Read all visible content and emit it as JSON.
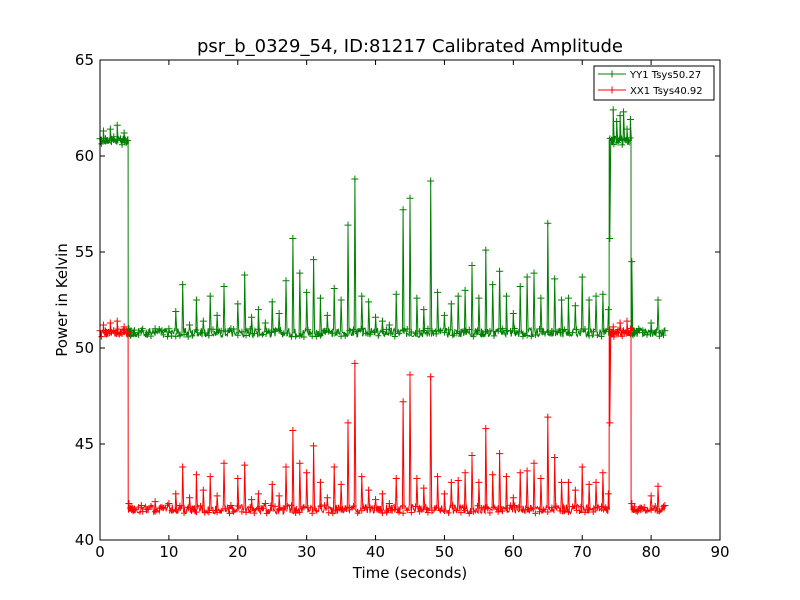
{
  "chart_data": {
    "type": "line",
    "title": "psr_b_0329_54, ID:81217 Calibrated Amplitude",
    "xlabel": "Time (seconds)",
    "ylabel": "Power in Kelvin",
    "xlim": [
      0,
      90
    ],
    "ylim": [
      40,
      65
    ],
    "xticks": [
      "0",
      "10",
      "20",
      "30",
      "40",
      "50",
      "60",
      "70",
      "80",
      "90"
    ],
    "yticks": [
      "40",
      "45",
      "50",
      "55",
      "60",
      "65"
    ],
    "grid": false,
    "legend_position": "top-right",
    "markers": "plus",
    "series": [
      {
        "name": "YY1 Tsys50.27",
        "color": "#008000",
        "baseline": 50.8,
        "cal_on_level": 60.8,
        "x": [
          0,
          0.5,
          1.0,
          1.5,
          2.0,
          2.5,
          3.0,
          3.5,
          4.0,
          4.2,
          4.5,
          5.0,
          6.0,
          7.0,
          8.0,
          9.0,
          10.0,
          11.0,
          12.0,
          13.0,
          14.0,
          15.0,
          16.0,
          17.0,
          18.0,
          19.0,
          20.0,
          21.0,
          22.0,
          23.0,
          24.0,
          25.0,
          26.0,
          27.0,
          28.0,
          29.0,
          30.0,
          31.0,
          32.0,
          33.0,
          34.0,
          35.0,
          36.0,
          37.0,
          38.0,
          39.0,
          40.0,
          41.0,
          42.0,
          43.0,
          44.0,
          45.0,
          46.0,
          47.0,
          48.0,
          49.0,
          50.0,
          51.0,
          52.0,
          53.0,
          54.0,
          55.0,
          56.0,
          57.0,
          58.0,
          59.0,
          60.0,
          61.0,
          62.0,
          63.0,
          64.0,
          65.0,
          66.0,
          67.0,
          68.0,
          69.0,
          70.0,
          71.0,
          72.0,
          73.0,
          73.8,
          74.0,
          74.5,
          75.0,
          75.5,
          76.0,
          76.5,
          77.0,
          77.2,
          77.5,
          78.0,
          79.0,
          80.0,
          81.0,
          82.0
        ],
        "y": [
          60.9,
          61.3,
          60.8,
          61.4,
          61.0,
          61.6,
          60.9,
          61.2,
          60.8,
          51.0,
          50.9,
          50.8,
          50.9,
          50.8,
          51.0,
          50.9,
          51.0,
          51.9,
          53.3,
          51.2,
          52.5,
          51.4,
          52.7,
          51.7,
          53.2,
          51.0,
          52.3,
          53.8,
          51.6,
          52.0,
          51.3,
          52.4,
          51.8,
          53.5,
          55.7,
          53.9,
          52.9,
          54.6,
          52.6,
          51.7,
          53.1,
          52.5,
          56.4,
          58.8,
          52.7,
          52.4,
          51.6,
          51.4,
          51.2,
          52.8,
          57.2,
          57.8,
          52.6,
          52.0,
          58.7,
          52.9,
          51.7,
          52.3,
          52.7,
          53.0,
          54.3,
          52.6,
          55.1,
          53.3,
          54.0,
          52.7,
          51.8,
          53.2,
          53.7,
          53.9,
          52.6,
          56.5,
          53.6,
          52.5,
          52.6,
          52.2,
          53.7,
          52.5,
          52.7,
          52.8,
          52.0,
          55.7,
          62.4,
          61.8,
          62.1,
          62.3,
          61.4,
          61.9,
          54.5,
          50.9,
          50.8,
          50.8,
          51.3,
          52.5,
          50.9
        ]
      },
      {
        "name": "XX1 Tsys40.92",
        "color": "#ff0000",
        "baseline": 41.6,
        "cal_on_level": 50.8,
        "x": [
          0,
          0.5,
          1.0,
          1.5,
          2.0,
          2.5,
          3.0,
          3.5,
          4.0,
          4.2,
          4.5,
          5.0,
          6.0,
          7.0,
          8.0,
          9.0,
          10.0,
          11.0,
          12.0,
          13.0,
          14.0,
          15.0,
          16.0,
          17.0,
          18.0,
          19.0,
          20.0,
          21.0,
          22.0,
          23.0,
          24.0,
          25.0,
          26.0,
          27.0,
          28.0,
          29.0,
          30.0,
          31.0,
          32.0,
          33.0,
          34.0,
          35.0,
          36.0,
          37.0,
          38.0,
          39.0,
          40.0,
          41.0,
          42.0,
          43.0,
          44.0,
          45.0,
          46.0,
          47.0,
          48.0,
          49.0,
          50.0,
          51.0,
          52.0,
          53.0,
          54.0,
          55.0,
          56.0,
          57.0,
          58.0,
          59.0,
          60.0,
          61.0,
          62.0,
          63.0,
          64.0,
          65.0,
          66.0,
          67.0,
          68.0,
          69.0,
          70.0,
          71.0,
          72.0,
          73.0,
          73.8,
          74.0,
          74.5,
          75.0,
          75.5,
          76.0,
          76.5,
          77.0,
          77.2,
          77.5,
          78.0,
          79.0,
          80.0,
          81.0,
          82.0
        ],
        "y": [
          50.9,
          51.2,
          50.8,
          51.3,
          50.9,
          51.4,
          50.8,
          51.1,
          50.8,
          41.9,
          41.7,
          41.6,
          41.8,
          41.6,
          42.0,
          41.7,
          41.9,
          42.4,
          43.8,
          42.2,
          43.4,
          42.6,
          43.3,
          42.3,
          44.0,
          41.8,
          43.2,
          43.9,
          42.1,
          42.4,
          41.9,
          42.9,
          42.3,
          43.8,
          45.7,
          44.0,
          43.5,
          44.9,
          43.0,
          42.2,
          43.8,
          42.9,
          46.1,
          49.2,
          43.3,
          42.6,
          42.1,
          42.4,
          41.9,
          43.2,
          47.2,
          48.6,
          43.2,
          42.7,
          48.5,
          43.3,
          42.4,
          43.0,
          43.1,
          43.5,
          44.4,
          43.0,
          45.8,
          43.4,
          44.5,
          43.3,
          42.2,
          43.5,
          43.6,
          44.0,
          43.2,
          46.4,
          44.3,
          43.0,
          43.0,
          42.6,
          43.8,
          42.9,
          43.0,
          43.5,
          42.4,
          46.1,
          51.1,
          50.8,
          51.3,
          50.9,
          51.4,
          50.9,
          41.9,
          41.6,
          41.5,
          41.7,
          42.3,
          42.8,
          41.8
        ]
      }
    ]
  }
}
